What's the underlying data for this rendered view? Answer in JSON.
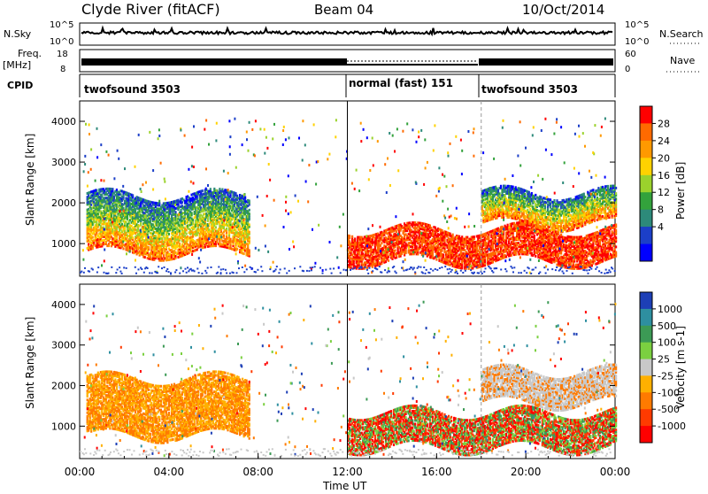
{
  "header": {
    "station": "Clyde River (fitACF)",
    "beam": "Beam 04",
    "date": "10/Oct/2014"
  },
  "strips": {
    "nsky_label": "N.Sky",
    "nsearch_label": "N.Search",
    "nsky_ticks": [
      "10^5",
      "10^0"
    ],
    "nsearch_ticks": [
      "10^5",
      "10^0"
    ],
    "freq_label_1": "Freq.",
    "freq_label_2": "[MHz]",
    "freq_ticks": [
      "18",
      "8"
    ],
    "nave_label": "Nave",
    "nave_ticks": [
      "60",
      "0"
    ],
    "cpid_label": "CPID",
    "cpid_segments": [
      {
        "label": "twofsound 3503",
        "start_h": 0,
        "end_h": 12
      },
      {
        "label": "normal (fast) 151",
        "start_h": 12,
        "end_h": 18
      },
      {
        "label": "twofsound 3503",
        "start_h": 18,
        "end_h": 24
      }
    ]
  },
  "chart_data": [
    {
      "type": "heatmap",
      "name": "power-panel",
      "ylabel": "Slant Range [km]",
      "xlim": [
        0,
        24
      ],
      "ylim": [
        200,
        4500
      ],
      "yticks": [
        1000,
        2000,
        3000,
        4000
      ],
      "colorbar": {
        "label": "Power [dB]",
        "ticks": [
          "28",
          "24",
          "20",
          "16",
          "12",
          "8",
          "4"
        ],
        "colors": [
          "#ff0000",
          "#ff6a00",
          "#ff9900",
          "#ffd200",
          "#9bd22c",
          "#33a23c",
          "#2d8a7a",
          "#1c3fc8",
          "#0000ff"
        ]
      },
      "echo_regions": [
        {
          "t0": 0.3,
          "t1": 7.6,
          "r0": 800,
          "r1": 2200,
          "level": 16
        },
        {
          "t0": 12.0,
          "t1": 24.0,
          "r0": 600,
          "r1": 1400,
          "level": 28
        },
        {
          "t0": 18.0,
          "t1": 24.0,
          "r0": 1500,
          "r1": 2300,
          "level": 22
        }
      ]
    },
    {
      "type": "heatmap",
      "name": "velocity-panel",
      "ylabel": "Slant Range [km]",
      "xlim": [
        0,
        24
      ],
      "ylim": [
        200,
        4500
      ],
      "yticks": [
        1000,
        2000,
        3000,
        4000
      ],
      "colorbar": {
        "label": "Velocity [m s-1]",
        "ticks": [
          "1000",
          "500",
          "100",
          "25",
          "-25",
          "-100",
          "-500",
          "-1000"
        ],
        "colors": [
          "#1d3fb6",
          "#2e8fa0",
          "#3c9a55",
          "#7bd040",
          "#c8c8c8",
          "#ffb000",
          "#ff7a00",
          "#ff3a00",
          "#ff0000"
        ]
      },
      "echo_regions": [
        {
          "t0": 0.3,
          "t1": 7.6,
          "r0": 800,
          "r1": 2200,
          "level": -100
        },
        {
          "t0": 12.0,
          "t1": 24.0,
          "r0": 500,
          "r1": 1400,
          "level": -300
        },
        {
          "t0": 18.0,
          "t1": 24.0,
          "r0": 1600,
          "r1": 2400,
          "level": 0
        }
      ]
    }
  ],
  "xaxis": {
    "ticks": [
      "00:00",
      "04:00",
      "08:00",
      "12:00",
      "16:00",
      "20:00",
      "00:00"
    ],
    "label": "Time UT"
  }
}
